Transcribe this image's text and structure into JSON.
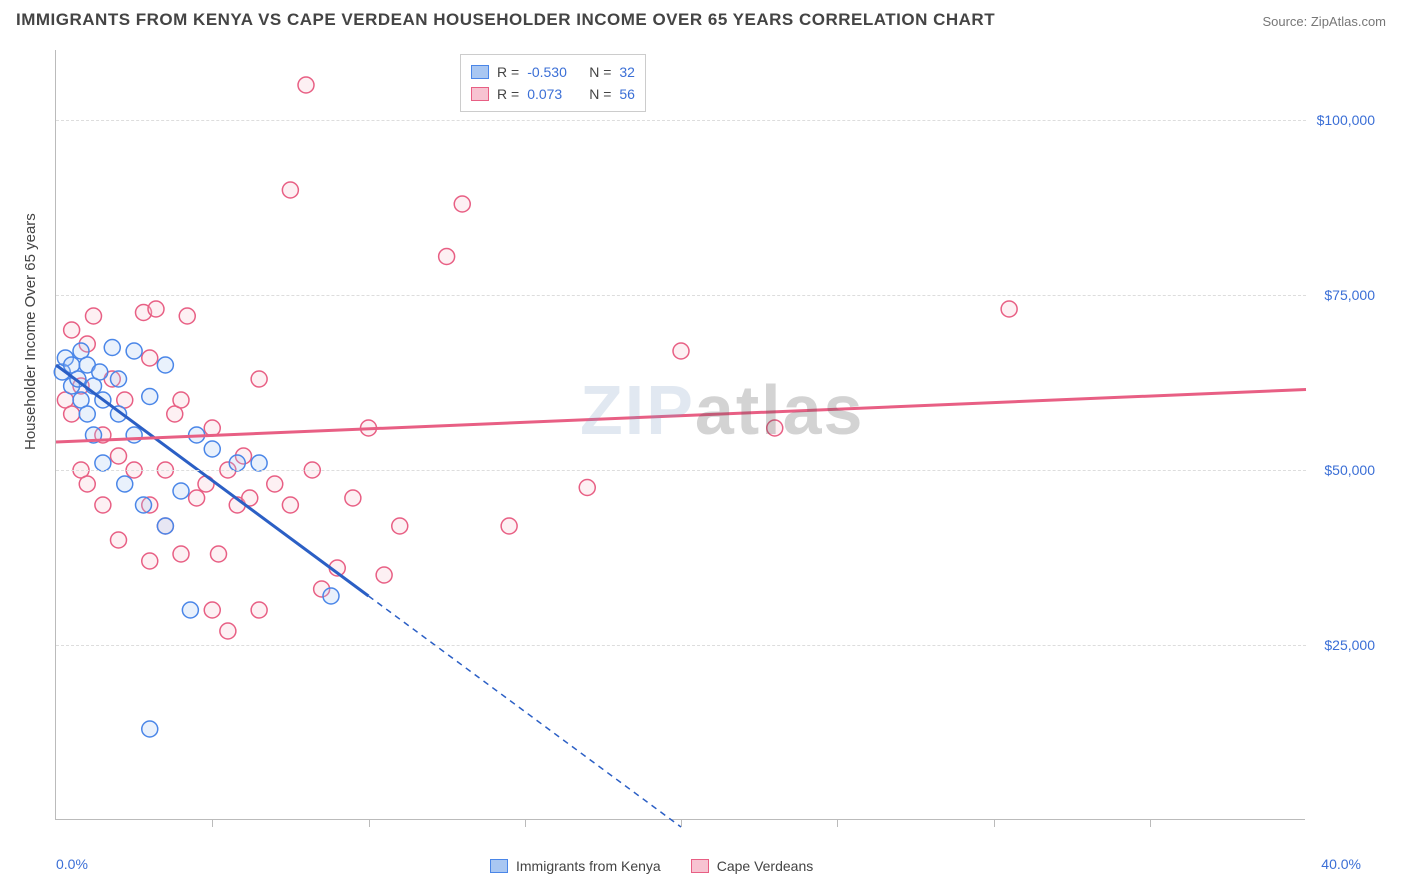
{
  "title": "IMMIGRANTS FROM KENYA VS CAPE VERDEAN HOUSEHOLDER INCOME OVER 65 YEARS CORRELATION CHART",
  "source": "Source: ZipAtlas.com",
  "ylabel": "Householder Income Over 65 years",
  "watermark": {
    "left": "ZIP",
    "right": "atlas"
  },
  "chart": {
    "type": "scatter",
    "xlim": [
      0,
      40
    ],
    "ylim": [
      0,
      110000
    ],
    "xticks_major": [
      0,
      40
    ],
    "xtick_labels": [
      "0.0%",
      "40.0%"
    ],
    "xticks_minor": [
      5,
      10,
      15,
      20,
      25,
      30,
      35
    ],
    "yticks": [
      25000,
      50000,
      75000,
      100000
    ],
    "ytick_labels": [
      "$25,000",
      "$50,000",
      "$75,000",
      "$100,000"
    ],
    "grid_color": "#dddddd",
    "axis_label_color": "#3b6fd6",
    "background_color": "#ffffff",
    "marker_radius": 8,
    "marker_stroke_width": 1.5,
    "marker_fill_opacity": 0.25
  },
  "series": {
    "kenya": {
      "label": "Immigrants from Kenya",
      "color_stroke": "#4a86e8",
      "color_fill": "#a9c7f2",
      "regression": {
        "x1": 0,
        "y1": 65000,
        "x2": 10,
        "y2": 32000,
        "extrap_x2": 20,
        "extrap_y2": -1000
      },
      "R": "-0.530",
      "N": "32",
      "points": [
        [
          0.2,
          64000
        ],
        [
          0.3,
          66000
        ],
        [
          0.5,
          62000
        ],
        [
          0.5,
          65000
        ],
        [
          0.7,
          63000
        ],
        [
          0.8,
          67000
        ],
        [
          0.8,
          60000
        ],
        [
          1.0,
          65000
        ],
        [
          1.0,
          58000
        ],
        [
          1.2,
          62000
        ],
        [
          1.2,
          55000
        ],
        [
          1.4,
          64000
        ],
        [
          1.5,
          51000
        ],
        [
          1.5,
          60000
        ],
        [
          1.8,
          67500
        ],
        [
          2.0,
          58000
        ],
        [
          2.0,
          63000
        ],
        [
          2.2,
          48000
        ],
        [
          2.5,
          55000
        ],
        [
          2.5,
          67000
        ],
        [
          2.8,
          45000
        ],
        [
          3.0,
          60500
        ],
        [
          3.5,
          65000
        ],
        [
          3.5,
          42000
        ],
        [
          4.0,
          47000
        ],
        [
          4.3,
          30000
        ],
        [
          4.5,
          55000
        ],
        [
          5.0,
          53000
        ],
        [
          5.8,
          51000
        ],
        [
          6.5,
          51000
        ],
        [
          8.8,
          32000
        ],
        [
          3.0,
          13000
        ]
      ]
    },
    "cape_verdean": {
      "label": "Cape Verdeans",
      "color_stroke": "#e85f84",
      "color_fill": "#f7c3d1",
      "regression": {
        "x1": 0,
        "y1": 54000,
        "x2": 40,
        "y2": 61500
      },
      "R": "0.073",
      "N": "56",
      "points": [
        [
          0.3,
          60000
        ],
        [
          0.5,
          70000
        ],
        [
          0.5,
          58000
        ],
        [
          0.8,
          62000
        ],
        [
          0.8,
          50000
        ],
        [
          1.0,
          68000
        ],
        [
          1.0,
          48000
        ],
        [
          1.2,
          72000
        ],
        [
          1.5,
          55000
        ],
        [
          1.5,
          45000
        ],
        [
          1.8,
          63000
        ],
        [
          2.0,
          52000
        ],
        [
          2.0,
          40000
        ],
        [
          2.2,
          60000
        ],
        [
          2.5,
          50000
        ],
        [
          2.8,
          72500
        ],
        [
          3.0,
          66000
        ],
        [
          3.0,
          45000
        ],
        [
          3.0,
          37000
        ],
        [
          3.2,
          73000
        ],
        [
          3.5,
          50000
        ],
        [
          3.5,
          42000
        ],
        [
          3.8,
          58000
        ],
        [
          4.0,
          60000
        ],
        [
          4.0,
          38000
        ],
        [
          4.2,
          72000
        ],
        [
          4.5,
          46000
        ],
        [
          4.8,
          48000
        ],
        [
          5.0,
          56000
        ],
        [
          5.0,
          30000
        ],
        [
          5.2,
          38000
        ],
        [
          5.5,
          50000
        ],
        [
          5.5,
          27000
        ],
        [
          5.8,
          45000
        ],
        [
          6.0,
          52000
        ],
        [
          6.2,
          46000
        ],
        [
          6.5,
          63000
        ],
        [
          6.5,
          30000
        ],
        [
          7.0,
          48000
        ],
        [
          7.5,
          90000
        ],
        [
          7.5,
          45000
        ],
        [
          8.0,
          105000
        ],
        [
          8.2,
          50000
        ],
        [
          8.5,
          33000
        ],
        [
          9.0,
          36000
        ],
        [
          9.5,
          46000
        ],
        [
          10.0,
          56000
        ],
        [
          10.5,
          35000
        ],
        [
          11.0,
          42000
        ],
        [
          12.5,
          80500
        ],
        [
          13.0,
          88000
        ],
        [
          14.5,
          42000
        ],
        [
          17.0,
          47500
        ],
        [
          20.0,
          67000
        ],
        [
          23.0,
          56000
        ],
        [
          30.5,
          73000
        ]
      ]
    }
  },
  "legend_top": [
    {
      "swatch": "kenya",
      "R_label": "R =",
      "R": "-0.530",
      "N_label": "N =",
      "N": "32"
    },
    {
      "swatch": "cape_verdean",
      "R_label": "R =",
      "R": "0.073",
      "N_label": "N =",
      "N": "56"
    }
  ],
  "legend_bottom": [
    {
      "swatch": "kenya",
      "label": "Immigrants from Kenya"
    },
    {
      "swatch": "cape_verdean",
      "label": "Cape Verdeans"
    }
  ]
}
